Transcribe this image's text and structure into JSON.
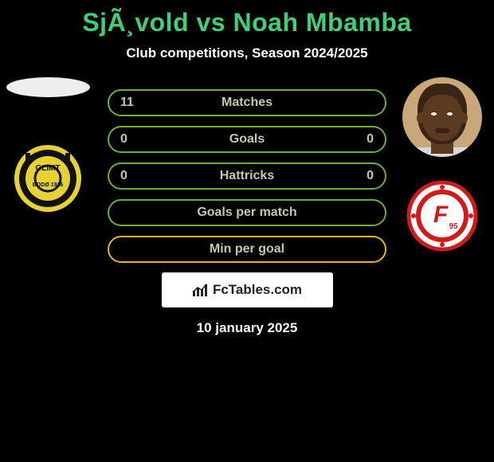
{
  "title_color": "#3fcf7a",
  "title_parts": {
    "p1": "SjÃ¸vold",
    "vs": " vs ",
    "p2": "Noah Mbamba"
  },
  "subtitle": "Club competitions, Season 2024/2025",
  "rows": [
    {
      "left": "11",
      "label": "Matches",
      "right": "",
      "border": "#6fae2e"
    },
    {
      "left": "0",
      "label": "Goals",
      "right": "0",
      "border": "#6fae2e"
    },
    {
      "left": "0",
      "label": "Hattricks",
      "right": "0",
      "border": "#6fae2e"
    },
    {
      "left": "",
      "label": "Goals per match",
      "right": "",
      "border": "#6fae2e"
    },
    {
      "left": "",
      "label": "Min per goal",
      "right": "",
      "border": "#e6b800"
    }
  ],
  "row_text_color": "#c7c7a8",
  "watermark_text": "FcTables.com",
  "date_text": "10 january 2025",
  "club_left": {
    "outer": "#e6d233",
    "inner": "#111",
    "text_top": "GLIMT",
    "text_bottom": "BODØ 1916"
  },
  "club_right": {
    "outer": "#fff",
    "ring": "#d11a1a",
    "letter": "F",
    "sub": "95"
  }
}
